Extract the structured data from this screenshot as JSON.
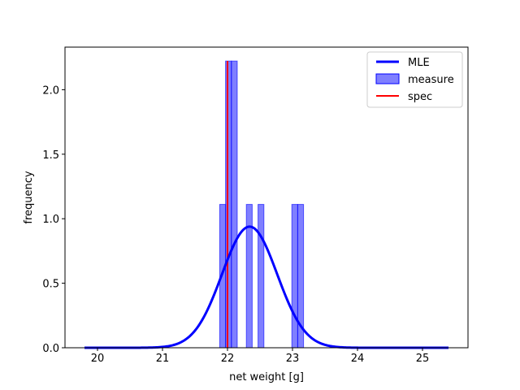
{
  "chart_data": {
    "type": "bar",
    "xlabel": "net weight [g]",
    "ylabel": "frequency",
    "xlim": [
      19.5,
      25.7
    ],
    "ylim": [
      0,
      2.33
    ],
    "xticks": [
      "20",
      "21",
      "22",
      "23",
      "24",
      "25"
    ],
    "yticks": [
      "0.0",
      "0.5",
      "1.0",
      "1.5",
      "2.0"
    ],
    "legend_position": "top-right",
    "grid": false,
    "series": [
      {
        "name": "MLE",
        "kind": "line",
        "color": "#0000ff",
        "mean": 22.34,
        "std": 0.425,
        "range": [
          19.8,
          25.4
        ]
      },
      {
        "name": "measure",
        "kind": "histogram",
        "color": "#0000ff",
        "alpha": 0.5,
        "bins": [
          {
            "start": 21.88,
            "end": 21.97,
            "value": 1.111
          },
          {
            "start": 21.97,
            "end": 22.06,
            "value": 2.222
          },
          {
            "start": 22.06,
            "end": 22.15,
            "value": 2.222
          },
          {
            "start": 22.29,
            "end": 22.38,
            "value": 1.111
          },
          {
            "start": 22.47,
            "end": 22.56,
            "value": 1.111
          },
          {
            "start": 22.99,
            "end": 23.08,
            "value": 1.111
          },
          {
            "start": 23.08,
            "end": 23.17,
            "value": 1.111
          }
        ]
      },
      {
        "name": "spec",
        "kind": "vline",
        "color": "#ff0000",
        "x": 22.0,
        "y_range": [
          0,
          2.222
        ]
      }
    ]
  }
}
